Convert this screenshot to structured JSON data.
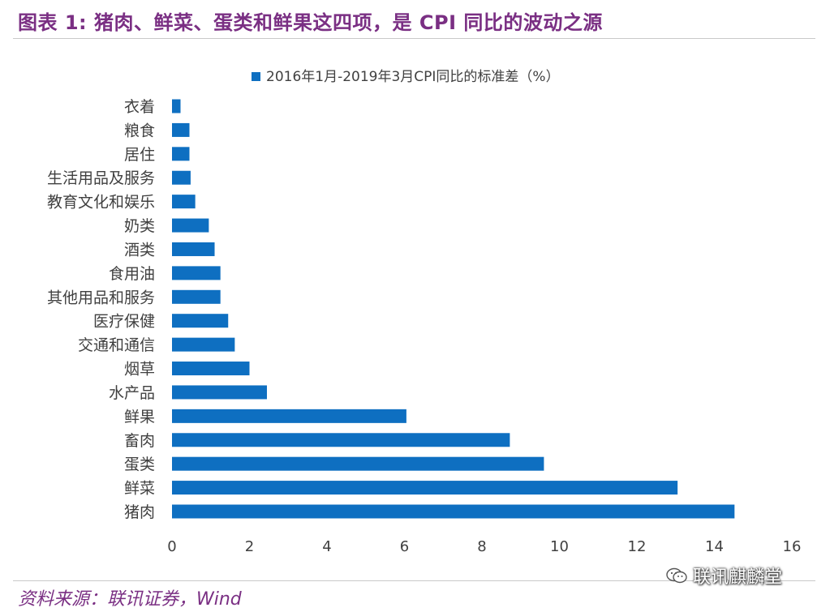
{
  "title": "图表 1:  猪肉、鲜菜、蛋类和鲜果这四项，是 CPI 同比的波动之源",
  "source": "资料来源：联讯证券，Wind",
  "watermark": "联讯麒麟堂",
  "colors": {
    "bar": "#0e6fc1",
    "title": "#7a2f83",
    "text": "#404040",
    "rule": "#c9c9c9"
  },
  "chart_data": {
    "type": "bar",
    "orientation": "horizontal",
    "categories": [
      "衣着",
      "粮食",
      "居住",
      "生活用品及服务",
      "教育文化和娱乐",
      "奶类",
      "酒类",
      "食用油",
      "其他用品和服务",
      "医疗保健",
      "交通和通信",
      "烟草",
      "水产品",
      "鲜果",
      "畜肉",
      "蛋类",
      "鲜菜",
      "猪肉"
    ],
    "series": [
      {
        "name": "2016年1月-2019年3月CPI同比的标准差（%）",
        "values": [
          0.22,
          0.45,
          0.45,
          0.48,
          0.6,
          0.95,
          1.1,
          1.25,
          1.25,
          1.45,
          1.62,
          2.0,
          2.45,
          6.05,
          8.72,
          9.6,
          13.05,
          14.52
        ]
      }
    ],
    "xlim": [
      0,
      16
    ],
    "xticks": [
      "0",
      "2",
      "4",
      "6",
      "8",
      "10",
      "12",
      "14",
      "16"
    ],
    "legend_position": "top-center",
    "grid": false
  }
}
